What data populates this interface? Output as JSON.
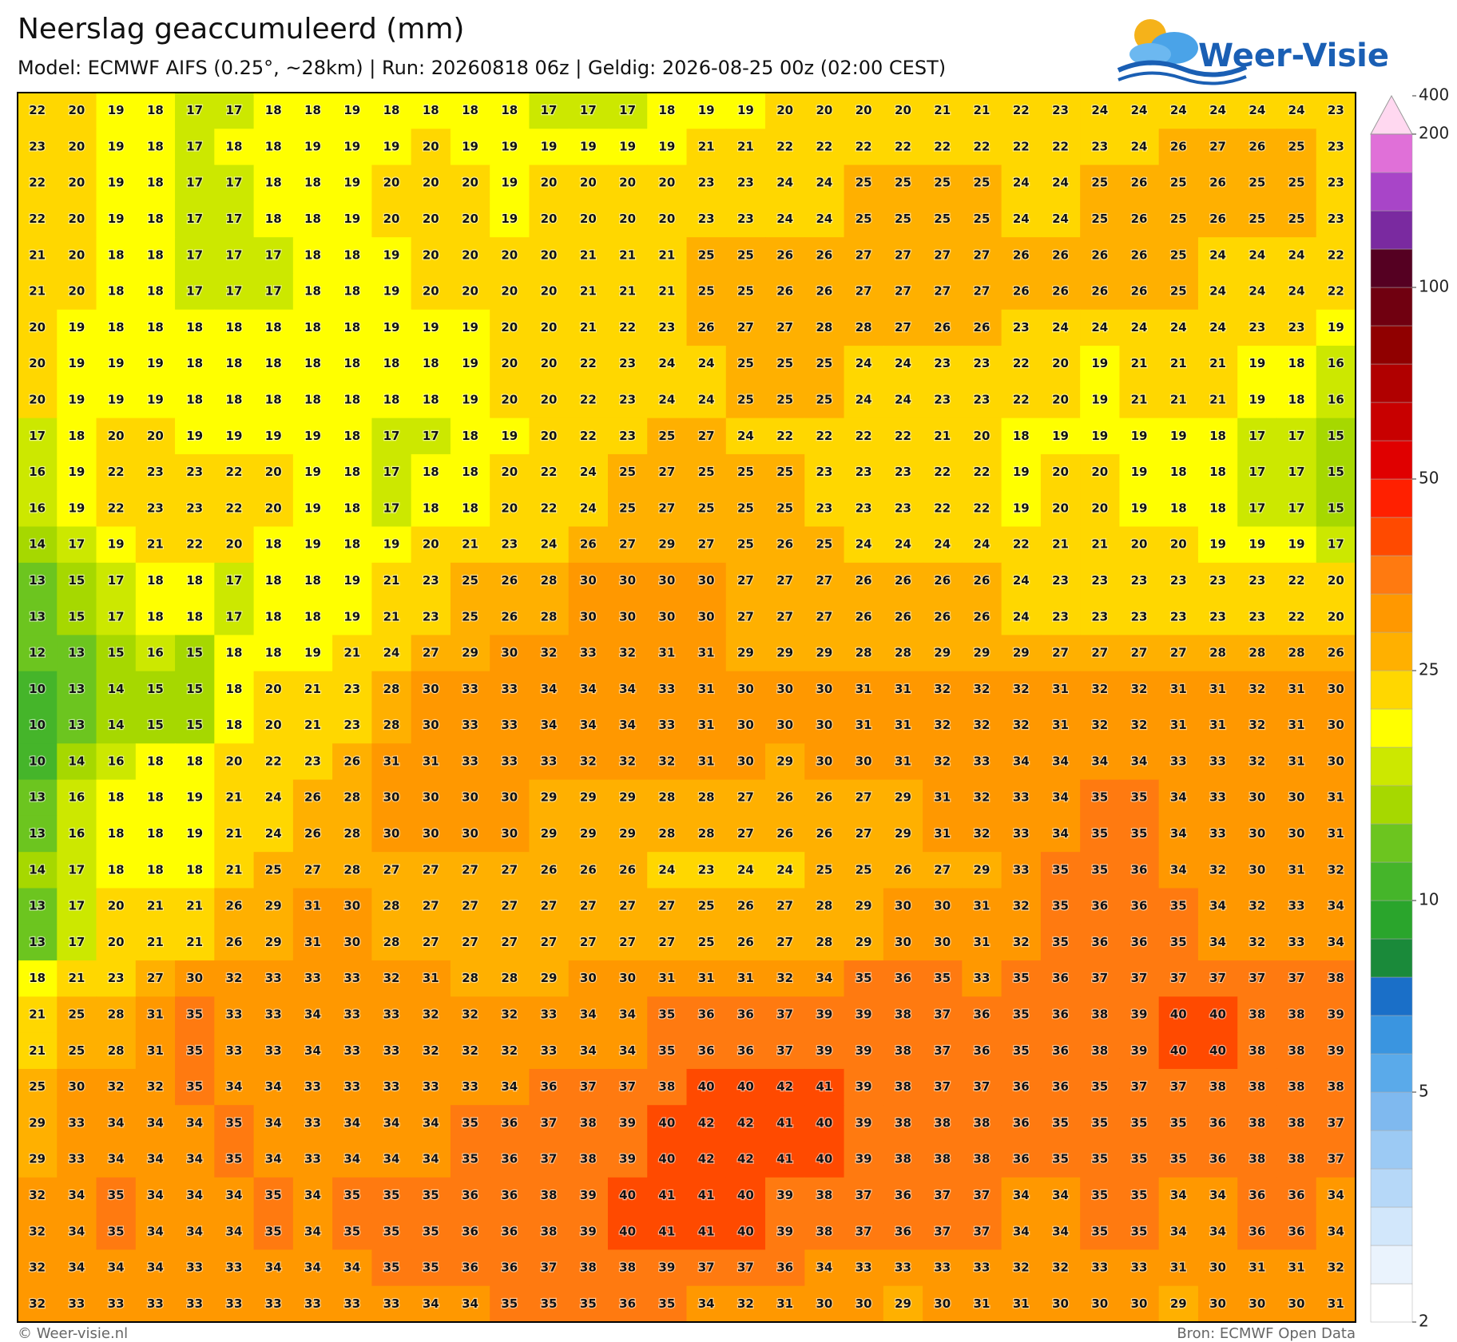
{
  "header": {
    "title": "Neerslag geaccumuleerd (mm)",
    "subtitle": "Model: ECMWF AIFS (0.25°, ~28km)  |  Run: 20260818 06z  |  Geldig: 2026-08-25 00z (02:00 CEST)",
    "logo": "Weer-Visie"
  },
  "chart_data": {
    "type": "heatmap",
    "values": [
      [
        22,
        20,
        19,
        18,
        17,
        17,
        18,
        18,
        19,
        18,
        18,
        18,
        18,
        17,
        17,
        17,
        18,
        19,
        19,
        20,
        20,
        20,
        20,
        21,
        21,
        22,
        23,
        24,
        24,
        24,
        24,
        24,
        24,
        23
      ],
      [
        23,
        20,
        19,
        18,
        17,
        18,
        18,
        19,
        19,
        19,
        20,
        19,
        19,
        19,
        19,
        19,
        19,
        21,
        21,
        22,
        22,
        22,
        22,
        22,
        22,
        22,
        22,
        23,
        24,
        26,
        27,
        26,
        25,
        23
      ],
      [
        22,
        20,
        19,
        18,
        17,
        17,
        18,
        18,
        19,
        20,
        20,
        20,
        19,
        20,
        20,
        20,
        20,
        23,
        23,
        24,
        24,
        25,
        25,
        25,
        25,
        24,
        24,
        25,
        26,
        25,
        26,
        25,
        25,
        23
      ],
      [
        22,
        20,
        19,
        18,
        17,
        17,
        18,
        18,
        19,
        20,
        20,
        20,
        19,
        20,
        20,
        20,
        20,
        23,
        23,
        24,
        24,
        25,
        25,
        25,
        25,
        24,
        24,
        25,
        26,
        25,
        26,
        25,
        25,
        23
      ],
      [
        21,
        20,
        18,
        18,
        17,
        17,
        17,
        18,
        18,
        19,
        20,
        20,
        20,
        20,
        21,
        21,
        21,
        25,
        25,
        26,
        26,
        27,
        27,
        27,
        27,
        26,
        26,
        26,
        26,
        25,
        24,
        24,
        24,
        22
      ],
      [
        21,
        20,
        18,
        18,
        17,
        17,
        17,
        18,
        18,
        19,
        20,
        20,
        20,
        20,
        21,
        21,
        21,
        25,
        25,
        26,
        26,
        27,
        27,
        27,
        27,
        26,
        26,
        26,
        26,
        25,
        24,
        24,
        24,
        22
      ],
      [
        20,
        19,
        18,
        18,
        18,
        18,
        18,
        18,
        18,
        19,
        19,
        19,
        20,
        20,
        21,
        22,
        23,
        26,
        27,
        27,
        28,
        28,
        27,
        26,
        26,
        23,
        24,
        24,
        24,
        24,
        24,
        23,
        23,
        19
      ],
      [
        20,
        19,
        19,
        19,
        18,
        18,
        18,
        18,
        18,
        18,
        18,
        19,
        20,
        20,
        22,
        23,
        24,
        24,
        25,
        25,
        25,
        24,
        24,
        23,
        23,
        22,
        20,
        19,
        21,
        21,
        21,
        19,
        18,
        16
      ],
      [
        20,
        19,
        19,
        19,
        18,
        18,
        18,
        18,
        18,
        18,
        18,
        19,
        20,
        20,
        22,
        23,
        24,
        24,
        25,
        25,
        25,
        24,
        24,
        23,
        23,
        22,
        20,
        19,
        21,
        21,
        21,
        19,
        18,
        16
      ],
      [
        17,
        18,
        20,
        20,
        19,
        19,
        19,
        19,
        18,
        17,
        17,
        18,
        19,
        20,
        22,
        23,
        25,
        27,
        24,
        22,
        22,
        22,
        22,
        21,
        20,
        18,
        19,
        19,
        19,
        19,
        18,
        17,
        17,
        15
      ],
      [
        16,
        19,
        22,
        23,
        23,
        22,
        20,
        19,
        18,
        17,
        18,
        18,
        20,
        22,
        24,
        25,
        27,
        25,
        25,
        25,
        23,
        23,
        23,
        22,
        22,
        19,
        20,
        20,
        19,
        18,
        18,
        17,
        17,
        15
      ],
      [
        16,
        19,
        22,
        23,
        23,
        22,
        20,
        19,
        18,
        17,
        18,
        18,
        20,
        22,
        24,
        25,
        27,
        25,
        25,
        25,
        23,
        23,
        23,
        22,
        22,
        19,
        20,
        20,
        19,
        18,
        18,
        17,
        17,
        15
      ],
      [
        14,
        17,
        19,
        21,
        22,
        20,
        18,
        19,
        18,
        19,
        20,
        21,
        23,
        24,
        26,
        27,
        29,
        27,
        25,
        26,
        25,
        24,
        24,
        24,
        24,
        22,
        21,
        21,
        20,
        20,
        19,
        19,
        19,
        17
      ],
      [
        13,
        15,
        17,
        18,
        18,
        17,
        18,
        18,
        19,
        21,
        23,
        25,
        26,
        28,
        30,
        30,
        30,
        30,
        27,
        27,
        27,
        26,
        26,
        26,
        26,
        24,
        23,
        23,
        23,
        23,
        23,
        23,
        22,
        20
      ],
      [
        13,
        15,
        17,
        18,
        18,
        17,
        18,
        18,
        19,
        21,
        23,
        25,
        26,
        28,
        30,
        30,
        30,
        30,
        27,
        27,
        27,
        26,
        26,
        26,
        26,
        24,
        23,
        23,
        23,
        23,
        23,
        23,
        22,
        20
      ],
      [
        12,
        13,
        15,
        16,
        15,
        18,
        18,
        19,
        21,
        24,
        27,
        29,
        30,
        32,
        33,
        32,
        31,
        31,
        29,
        29,
        29,
        28,
        28,
        29,
        29,
        29,
        27,
        27,
        27,
        27,
        28,
        28,
        28,
        26
      ],
      [
        10,
        13,
        14,
        15,
        15,
        18,
        20,
        21,
        23,
        28,
        30,
        33,
        33,
        34,
        34,
        34,
        33,
        31,
        30,
        30,
        30,
        31,
        31,
        32,
        32,
        32,
        31,
        32,
        32,
        31,
        31,
        32,
        31,
        30
      ],
      [
        10,
        13,
        14,
        15,
        15,
        18,
        20,
        21,
        23,
        28,
        30,
        33,
        33,
        34,
        34,
        34,
        33,
        31,
        30,
        30,
        30,
        31,
        31,
        32,
        32,
        32,
        31,
        32,
        32,
        31,
        31,
        32,
        31,
        30
      ],
      [
        10,
        14,
        16,
        18,
        18,
        20,
        22,
        23,
        26,
        31,
        31,
        33,
        33,
        33,
        32,
        32,
        32,
        31,
        30,
        29,
        30,
        30,
        31,
        32,
        33,
        34,
        34,
        34,
        34,
        33,
        33,
        32,
        31,
        30
      ],
      [
        13,
        16,
        18,
        18,
        19,
        21,
        24,
        26,
        28,
        30,
        30,
        30,
        30,
        29,
        29,
        29,
        28,
        28,
        27,
        26,
        26,
        27,
        29,
        31,
        32,
        33,
        34,
        35,
        35,
        34,
        33,
        30,
        30,
        31
      ],
      [
        13,
        16,
        18,
        18,
        19,
        21,
        24,
        26,
        28,
        30,
        30,
        30,
        30,
        29,
        29,
        29,
        28,
        28,
        27,
        26,
        26,
        27,
        29,
        31,
        32,
        33,
        34,
        35,
        35,
        34,
        33,
        30,
        30,
        31
      ],
      [
        14,
        17,
        18,
        18,
        18,
        21,
        25,
        27,
        28,
        27,
        27,
        27,
        27,
        26,
        26,
        26,
        24,
        23,
        24,
        24,
        25,
        25,
        26,
        27,
        29,
        33,
        35,
        35,
        36,
        34,
        32,
        30,
        31,
        32
      ],
      [
        13,
        17,
        20,
        21,
        21,
        26,
        29,
        31,
        30,
        28,
        27,
        27,
        27,
        27,
        27,
        27,
        27,
        25,
        26,
        27,
        28,
        29,
        30,
        30,
        31,
        32,
        35,
        36,
        36,
        35,
        34,
        32,
        33,
        34
      ],
      [
        13,
        17,
        20,
        21,
        21,
        26,
        29,
        31,
        30,
        28,
        27,
        27,
        27,
        27,
        27,
        27,
        27,
        25,
        26,
        27,
        28,
        29,
        30,
        30,
        31,
        32,
        35,
        36,
        36,
        35,
        34,
        32,
        33,
        34
      ],
      [
        18,
        21,
        23,
        27,
        30,
        32,
        33,
        33,
        33,
        32,
        31,
        28,
        28,
        29,
        30,
        30,
        31,
        31,
        31,
        32,
        34,
        35,
        36,
        35,
        33,
        35,
        36,
        37,
        37,
        37,
        37,
        37,
        37,
        38
      ],
      [
        21,
        25,
        28,
        31,
        35,
        33,
        33,
        34,
        33,
        33,
        32,
        32,
        32,
        33,
        34,
        34,
        35,
        36,
        36,
        37,
        39,
        39,
        38,
        37,
        36,
        35,
        36,
        38,
        39,
        40,
        40,
        38,
        38,
        39
      ],
      [
        21,
        25,
        28,
        31,
        35,
        33,
        33,
        34,
        33,
        33,
        32,
        32,
        32,
        33,
        34,
        34,
        35,
        36,
        36,
        37,
        39,
        39,
        38,
        37,
        36,
        35,
        36,
        38,
        39,
        40,
        40,
        38,
        38,
        39
      ],
      [
        25,
        30,
        32,
        32,
        35,
        34,
        34,
        33,
        33,
        33,
        33,
        33,
        34,
        36,
        37,
        37,
        38,
        40,
        40,
        42,
        41,
        39,
        38,
        37,
        37,
        36,
        36,
        35,
        37,
        37,
        38,
        38,
        38,
        38
      ],
      [
        29,
        33,
        34,
        34,
        34,
        35,
        34,
        33,
        34,
        34,
        34,
        35,
        36,
        37,
        38,
        39,
        40,
        42,
        42,
        41,
        40,
        39,
        38,
        38,
        38,
        36,
        35,
        35,
        35,
        35,
        36,
        38,
        38,
        37
      ],
      [
        29,
        33,
        34,
        34,
        34,
        35,
        34,
        33,
        34,
        34,
        34,
        35,
        36,
        37,
        38,
        39,
        40,
        42,
        42,
        41,
        40,
        39,
        38,
        38,
        38,
        36,
        35,
        35,
        35,
        35,
        36,
        38,
        38,
        37
      ],
      [
        32,
        34,
        35,
        34,
        34,
        34,
        35,
        34,
        35,
        35,
        35,
        36,
        36,
        38,
        39,
        40,
        41,
        41,
        40,
        39,
        38,
        37,
        36,
        37,
        37,
        34,
        34,
        35,
        35,
        34,
        34,
        36,
        36,
        34
      ],
      [
        32,
        34,
        35,
        34,
        34,
        34,
        35,
        34,
        35,
        35,
        35,
        36,
        36,
        38,
        39,
        40,
        41,
        41,
        40,
        39,
        38,
        37,
        36,
        37,
        37,
        34,
        34,
        35,
        35,
        34,
        34,
        36,
        36,
        34
      ],
      [
        32,
        34,
        34,
        34,
        33,
        33,
        34,
        34,
        34,
        35,
        35,
        36,
        36,
        37,
        38,
        38,
        39,
        37,
        37,
        36,
        34,
        33,
        33,
        33,
        33,
        32,
        32,
        33,
        33,
        31,
        30,
        31,
        31,
        32
      ],
      [
        32,
        33,
        33,
        33,
        33,
        33,
        33,
        33,
        33,
        33,
        34,
        34,
        35,
        35,
        35,
        36,
        35,
        34,
        32,
        31,
        30,
        30,
        29,
        30,
        31,
        31,
        30,
        30,
        30,
        29,
        30,
        30,
        30,
        31
      ]
    ],
    "colorbar": {
      "levels": [
        2,
        2.5,
        3,
        3.5,
        4,
        4.5,
        5,
        6,
        7,
        8,
        9,
        10,
        12,
        14,
        16,
        18,
        20,
        25,
        30,
        35,
        40,
        45,
        50,
        60,
        70,
        80,
        90,
        100,
        125,
        150,
        175,
        200,
        400
      ],
      "colors": [
        "#ffffff",
        "#eaf3fd",
        "#d2e7fb",
        "#b6d8f8",
        "#9ccaf4",
        "#7fb9ef",
        "#5aaaea",
        "#3a95e0",
        "#1a6fc8",
        "#1a8a3a",
        "#2aa52c",
        "#45b52a",
        "#6cc51f",
        "#a6d800",
        "#cce800",
        "#ffff00",
        "#ffd700",
        "#ffb000",
        "#ff9800",
        "#ff7a10",
        "#ff4a00",
        "#ff2000",
        "#e00000",
        "#c80000",
        "#b00000",
        "#900000",
        "#700010",
        "#550022",
        "#7a2aa0",
        "#a845c8",
        "#e070d8",
        "#ffd8f0"
      ],
      "ticks": [
        2,
        5,
        10,
        25,
        50,
        100,
        200,
        400
      ]
    }
  },
  "footer": {
    "left": "© Weer-visie.nl",
    "right": "Bron: ECMWF Open Data"
  }
}
